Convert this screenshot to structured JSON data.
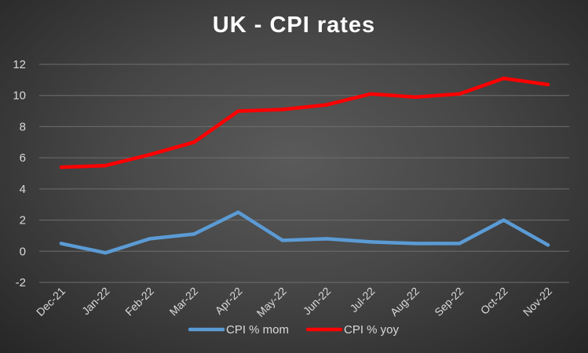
{
  "chart_data": {
    "type": "line",
    "title": "UK - CPI rates",
    "xlabel": "",
    "ylabel": "",
    "categories": [
      "Dec-21",
      "Jan-22",
      "Feb-22",
      "Mar-22",
      "Apr-22",
      "May-22",
      "Jun-22",
      "Jul-22",
      "Aug-22",
      "Sep-22",
      "Oct-22",
      "Nov-22"
    ],
    "series": [
      {
        "name": "CPI % mom",
        "color": "#5b9bd5",
        "values": [
          0.5,
          -0.1,
          0.8,
          1.1,
          2.5,
          0.7,
          0.8,
          0.6,
          0.5,
          0.5,
          2.0,
          0.4
        ]
      },
      {
        "name": "CPI % yoy",
        "color": "#ff0000",
        "values": [
          5.4,
          5.5,
          6.2,
          7.0,
          9.0,
          9.1,
          9.4,
          10.1,
          9.9,
          10.1,
          11.1,
          10.7
        ]
      }
    ],
    "ylim": [
      -2,
      12
    ],
    "yticks": [
      -2,
      0,
      2,
      4,
      6,
      8,
      10,
      12
    ],
    "grid": true,
    "legend": "bottom"
  }
}
